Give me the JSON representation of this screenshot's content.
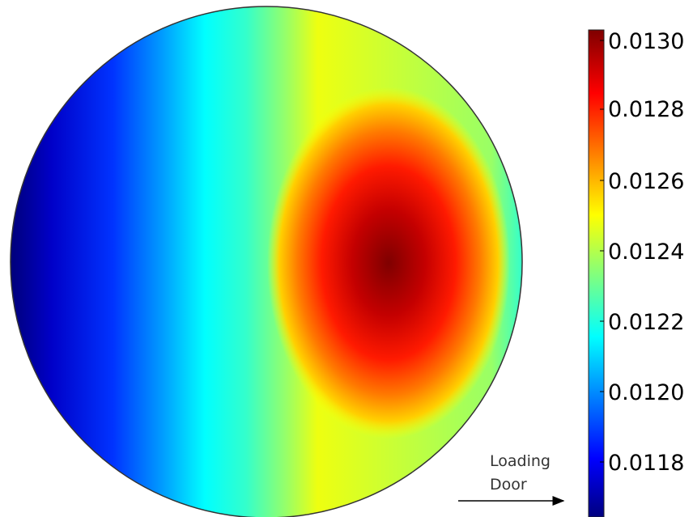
{
  "colorbar": {
    "ticks": [
      "0.0130",
      "0.0128",
      "0.0126",
      "0.0124",
      "0.0122",
      "0.0120",
      "0.0118"
    ],
    "colormap": [
      "#00007f",
      "#0000ff",
      "#00ffff",
      "#ffff00",
      "#ff0000",
      "#7f0000"
    ]
  },
  "annotation": {
    "line1": "Loading",
    "line2": "Door"
  }
}
